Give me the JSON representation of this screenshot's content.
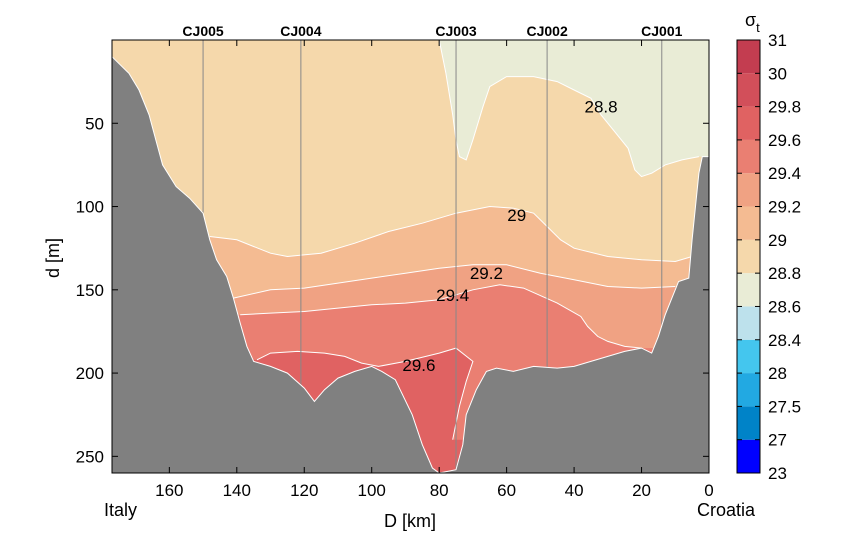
{
  "chart_data": {
    "type": "heatmap",
    "title": "",
    "xlabel": "D [km]",
    "ylabel": "d [m]",
    "xlim": [
      0,
      177
    ],
    "ylim": [
      260,
      0
    ],
    "x_reversed": true,
    "xticks": [
      160,
      140,
      120,
      100,
      80,
      60,
      40,
      20,
      0
    ],
    "yticks": [
      50,
      100,
      150,
      200,
      250
    ],
    "left_end_label": "Italy",
    "right_end_label": "Croatia",
    "colorbar": {
      "title": "σ",
      "title_sub": "t",
      "levels": [
        23,
        27,
        27.5,
        28,
        28.4,
        28.6,
        28.8,
        29,
        29.2,
        29.4,
        29.6,
        29.8,
        30,
        31
      ],
      "colors": [
        "#0000ff",
        "#0083c8",
        "#22a9e2",
        "#44c6ee",
        "#bde1ec",
        "#e9ecd6",
        "#f5d8ab",
        "#f4bb92",
        "#f0a283",
        "#ea7f72",
        "#e06262",
        "#d24f5a",
        "#c33d50"
      ]
    },
    "stations": [
      {
        "name": "CJ005",
        "x": 150
      },
      {
        "name": "CJ004",
        "x": 121
      },
      {
        "name": "CJ003",
        "x": 75
      },
      {
        "name": "CJ002",
        "x": 48
      },
      {
        "name": "CJ001",
        "x": 14
      }
    ],
    "contour_labels": [
      {
        "text": "28.8",
        "x": 32,
        "y": 40
      },
      {
        "text": "29",
        "x": 57,
        "y": 105
      },
      {
        "text": "29.2",
        "x": 66,
        "y": 140
      },
      {
        "text": "29.4",
        "x": 76,
        "y": 153
      },
      {
        "text": "29.6",
        "x": 86,
        "y": 195
      }
    ],
    "bathymetry": [
      [
        177,
        10
      ],
      [
        175,
        14
      ],
      [
        172,
        20
      ],
      [
        169,
        30
      ],
      [
        166,
        45
      ],
      [
        164,
        60
      ],
      [
        162,
        75
      ],
      [
        158,
        88
      ],
      [
        154,
        95
      ],
      [
        150,
        104
      ],
      [
        148,
        120
      ],
      [
        146,
        132
      ],
      [
        143,
        142
      ],
      [
        141,
        155
      ],
      [
        139,
        170
      ],
      [
        137,
        184
      ],
      [
        135,
        193
      ],
      [
        130,
        196
      ],
      [
        125,
        200
      ],
      [
        120,
        209
      ],
      [
        117,
        217
      ],
      [
        114,
        210
      ],
      [
        110,
        203
      ],
      [
        105,
        199
      ],
      [
        100,
        196
      ],
      [
        97,
        199
      ],
      [
        93,
        204
      ],
      [
        88,
        225
      ],
      [
        85,
        243
      ],
      [
        82,
        257
      ],
      [
        80,
        260
      ],
      [
        75,
        258
      ],
      [
        73,
        243
      ],
      [
        72,
        225
      ],
      [
        69,
        210
      ],
      [
        66,
        199
      ],
      [
        63,
        197
      ],
      [
        58,
        199
      ],
      [
        52,
        196
      ],
      [
        45,
        197
      ],
      [
        40,
        196
      ],
      [
        35,
        193
      ],
      [
        30,
        190
      ],
      [
        25,
        187
      ],
      [
        20,
        185
      ],
      [
        17,
        188
      ],
      [
        15,
        178
      ],
      [
        13,
        165
      ],
      [
        11,
        155
      ],
      [
        9,
        145
      ],
      [
        6,
        143
      ],
      [
        5,
        120
      ],
      [
        4,
        100
      ],
      [
        3,
        80
      ],
      [
        2,
        70
      ],
      [
        0,
        70
      ]
    ],
    "contours": [
      {
        "level": 28.8,
        "points": [
          [
            80,
            0
          ],
          [
            78,
            20
          ],
          [
            76,
            45
          ],
          [
            75,
            60
          ],
          [
            74,
            70
          ],
          [
            72,
            72
          ],
          [
            70,
            60
          ],
          [
            67,
            40
          ],
          [
            65,
            28
          ],
          [
            60,
            22
          ],
          [
            52,
            22
          ],
          [
            45,
            25
          ],
          [
            40,
            30
          ],
          [
            35,
            35
          ],
          [
            32,
            45
          ],
          [
            28,
            55
          ],
          [
            24,
            65
          ],
          [
            22,
            78
          ],
          [
            20,
            82
          ],
          [
            17,
            80
          ],
          [
            13,
            75
          ],
          [
            8,
            72
          ],
          [
            3,
            70
          ]
        ]
      },
      {
        "level": 29.0,
        "points": [
          [
            148,
            118
          ],
          [
            140,
            120
          ],
          [
            130,
            128
          ],
          [
            125,
            130
          ],
          [
            115,
            128
          ],
          [
            105,
            122
          ],
          [
            95,
            115
          ],
          [
            85,
            110
          ],
          [
            75,
            104
          ],
          [
            65,
            100
          ],
          [
            58,
            101
          ],
          [
            52,
            104
          ],
          [
            48,
            112
          ],
          [
            44,
            120
          ],
          [
            40,
            125
          ],
          [
            30,
            130
          ],
          [
            20,
            132
          ],
          [
            10,
            133
          ],
          [
            5,
            130
          ]
        ]
      },
      {
        "level": 29.2,
        "points": [
          [
            141,
            155
          ],
          [
            130,
            150
          ],
          [
            120,
            149
          ],
          [
            110,
            146
          ],
          [
            100,
            143
          ],
          [
            90,
            140
          ],
          [
            80,
            137
          ],
          [
            70,
            135
          ],
          [
            60,
            135
          ],
          [
            50,
            140
          ],
          [
            40,
            144
          ],
          [
            30,
            148
          ],
          [
            20,
            149
          ],
          [
            10,
            148
          ]
        ]
      },
      {
        "level": 29.4,
        "points": [
          [
            139,
            165
          ],
          [
            130,
            164
          ],
          [
            120,
            163
          ],
          [
            110,
            161
          ],
          [
            100,
            159
          ],
          [
            90,
            158
          ],
          [
            80,
            156
          ],
          [
            70,
            150
          ],
          [
            62,
            147
          ],
          [
            55,
            149
          ],
          [
            45,
            158
          ],
          [
            38,
            166
          ],
          [
            36,
            172
          ],
          [
            33,
            178
          ],
          [
            30,
            181
          ],
          [
            25,
            184
          ],
          [
            20,
            185
          ]
        ]
      },
      {
        "level": 29.6,
        "points": [
          [
            134,
            192
          ],
          [
            130,
            188
          ],
          [
            122,
            187
          ],
          [
            114,
            188
          ],
          [
            108,
            190
          ],
          [
            103,
            194
          ],
          [
            98,
            196
          ],
          [
            90,
            193
          ],
          [
            80,
            188
          ],
          [
            75,
            185
          ],
          [
            70,
            193
          ],
          [
            72,
            205
          ],
          [
            74,
            220
          ],
          [
            76,
            240
          ]
        ]
      }
    ]
  }
}
